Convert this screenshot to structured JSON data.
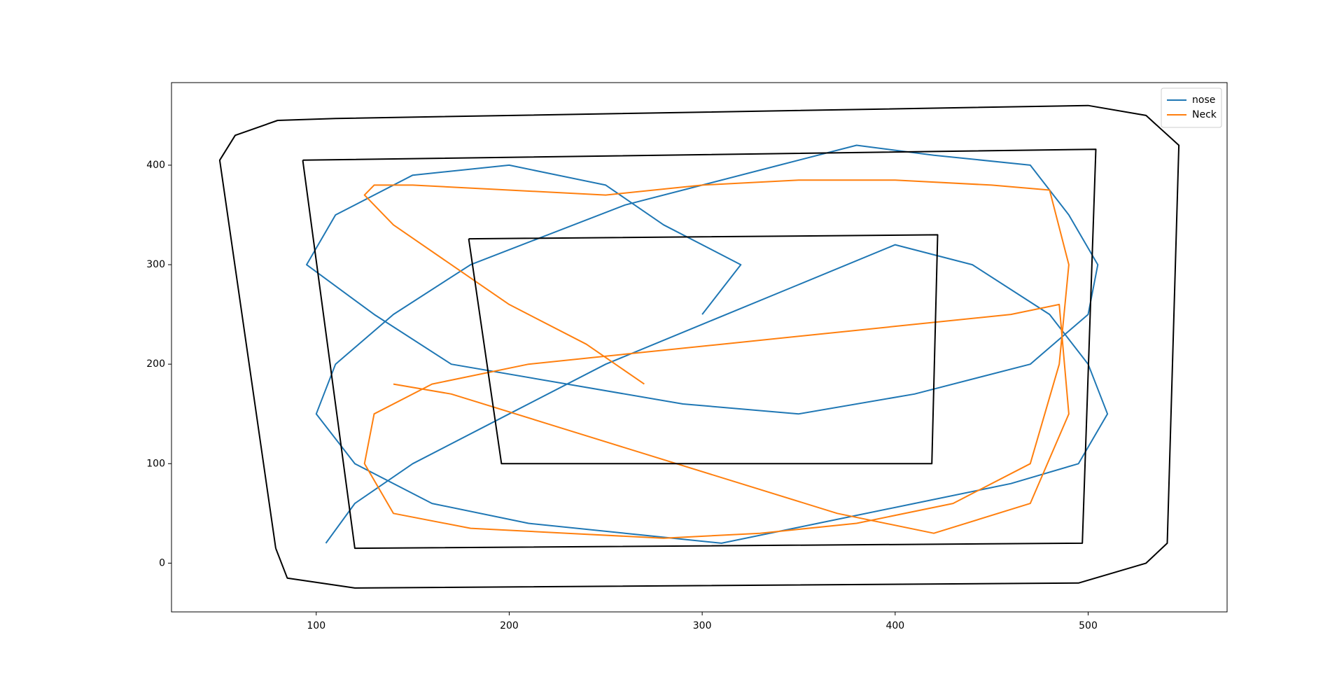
{
  "chart_data": {
    "type": "line",
    "xlim": [
      25,
      572
    ],
    "ylim": [
      -49,
      483
    ],
    "xticks": [
      100,
      200,
      300,
      400,
      500
    ],
    "yticks": [
      0,
      100,
      200,
      300,
      400
    ],
    "grid": false,
    "legend": "upper right",
    "series": [
      {
        "name": "nose",
        "color": "#1f77b4",
        "x": [
          300,
          320,
          280,
          250,
          200,
          150,
          110,
          95,
          130,
          170,
          230,
          290,
          350,
          410,
          470,
          500,
          505,
          490,
          470,
          420,
          380,
          340,
          300,
          260,
          220,
          180,
          140,
          110,
          100,
          120,
          160,
          210,
          260,
          310,
          360,
          410,
          460,
          495,
          510,
          500,
          480,
          440,
          400,
          350,
          300,
          250,
          200,
          150,
          120,
          105
        ],
        "values": [
          250,
          300,
          340,
          380,
          400,
          390,
          350,
          300,
          250,
          200,
          180,
          160,
          150,
          170,
          200,
          250,
          300,
          350,
          400,
          410,
          420,
          400,
          380,
          360,
          330,
          300,
          250,
          200,
          150,
          100,
          60,
          40,
          30,
          20,
          40,
          60,
          80,
          100,
          150,
          200,
          250,
          300,
          320,
          280,
          240,
          200,
          150,
          100,
          60,
          20
        ]
      },
      {
        "name": "Neck",
        "color": "#ff7f0e",
        "x": [
          270,
          240,
          200,
          170,
          140,
          125,
          130,
          150,
          200,
          250,
          300,
          350,
          400,
          450,
          480,
          490,
          485,
          470,
          430,
          380,
          330,
          280,
          230,
          180,
          140,
          125,
          130,
          160,
          210,
          260,
          310,
          360,
          410,
          460,
          485,
          490,
          470,
          420,
          370,
          320,
          270,
          220,
          170,
          140
        ],
        "values": [
          180,
          220,
          260,
          300,
          340,
          370,
          380,
          380,
          375,
          370,
          380,
          385,
          385,
          380,
          375,
          300,
          200,
          100,
          60,
          40,
          30,
          25,
          30,
          35,
          50,
          100,
          150,
          180,
          200,
          210,
          220,
          230,
          240,
          250,
          260,
          150,
          60,
          30,
          50,
          80,
          110,
          140,
          170,
          180
        ]
      },
      {
        "color": "#000000",
        "x": [
          79,
          50,
          58,
          80,
          110,
          500,
          530,
          547,
          541,
          530,
          495,
          120,
          85,
          79
        ],
        "values": [
          15,
          405,
          430,
          445,
          447,
          460,
          450,
          420,
          20,
          0,
          -20,
          -25,
          -15,
          15
        ]
      },
      {
        "color": "#000000",
        "x": [
          93,
          504,
          497,
          120,
          93
        ],
        "values": [
          405,
          416,
          20,
          15,
          405
        ]
      },
      {
        "color": "#000000",
        "x": [
          179,
          422,
          419,
          196,
          179
        ],
        "values": [
          326,
          330,
          100,
          100,
          326
        ]
      }
    ]
  }
}
